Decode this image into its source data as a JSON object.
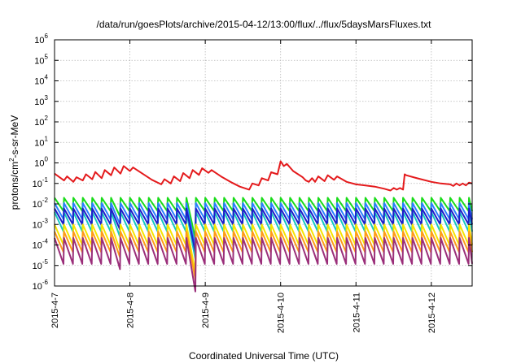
{
  "chart_data": {
    "type": "line",
    "title": "/data/run/goesPlots/archive/2015-04-12/13:00/flux/../flux/5daysMarsFluxes.txt",
    "xlabel": "Coordinated Universal Time (UTC)",
    "ylabel_parts": [
      "protons/cm",
      "2",
      "-s-sr-MeV"
    ],
    "yscale": "log",
    "ylim": [
      1e-06,
      1000000.0
    ],
    "y_ticks": [
      {
        "base": "10",
        "exp": "-6"
      },
      {
        "base": "10",
        "exp": "-5"
      },
      {
        "base": "10",
        "exp": "-4"
      },
      {
        "base": "10",
        "exp": "-3"
      },
      {
        "base": "10",
        "exp": "-2"
      },
      {
        "base": "10",
        "exp": "-1"
      },
      {
        "base": "10",
        "exp": "0"
      },
      {
        "base": "10",
        "exp": "1"
      },
      {
        "base": "10",
        "exp": "2"
      },
      {
        "base": "10",
        "exp": "3"
      },
      {
        "base": "10",
        "exp": "4"
      },
      {
        "base": "10",
        "exp": "5"
      },
      {
        "base": "10",
        "exp": "6"
      }
    ],
    "xlim": [
      "2015-04-07 00:00",
      "2015-04-12 13:00"
    ],
    "x_ticks": [
      "2015-4-7",
      "2015-4-8",
      "2015-4-9",
      "2015-4-10",
      "2015-4-11",
      "2015-4-12"
    ],
    "grid": true,
    "legend": "none",
    "series": [
      {
        "color": "#e41a1c",
        "points": [
          [
            "2015-04-07 00:00",
            0.3
          ],
          [
            "2015-04-07 03:00",
            0.14
          ],
          [
            "2015-04-07 04:00",
            0.22
          ],
          [
            "2015-04-07 06:00",
            0.12
          ],
          [
            "2015-04-07 07:00",
            0.2
          ],
          [
            "2015-04-07 09:00",
            0.14
          ],
          [
            "2015-04-07 10:00",
            0.28
          ],
          [
            "2015-04-07 12:00",
            0.16
          ],
          [
            "2015-04-07 13:00",
            0.36
          ],
          [
            "2015-04-07 15:00",
            0.18
          ],
          [
            "2015-04-07 16:00",
            0.45
          ],
          [
            "2015-04-07 18:00",
            0.25
          ],
          [
            "2015-04-07 19:00",
            0.6
          ],
          [
            "2015-04-07 21:00",
            0.3
          ],
          [
            "2015-04-07 22:00",
            0.7
          ],
          [
            "2015-04-08 00:00",
            0.4
          ],
          [
            "2015-04-08 01:00",
            0.6
          ],
          [
            "2015-04-08 04:00",
            0.3
          ],
          [
            "2015-04-08 07:00",
            0.15
          ],
          [
            "2015-04-08 10:00",
            0.09
          ],
          [
            "2015-04-08 11:00",
            0.16
          ],
          [
            "2015-04-08 13:00",
            0.1
          ],
          [
            "2015-04-08 14:00",
            0.22
          ],
          [
            "2015-04-08 16:00",
            0.13
          ],
          [
            "2015-04-08 17:00",
            0.32
          ],
          [
            "2015-04-08 19:00",
            0.18
          ],
          [
            "2015-04-08 20:00",
            0.45
          ],
          [
            "2015-04-08 22:00",
            0.26
          ],
          [
            "2015-04-08 23:00",
            0.55
          ],
          [
            "2015-04-09 01:00",
            0.33
          ],
          [
            "2015-04-09 02:00",
            0.45
          ],
          [
            "2015-04-09 05:00",
            0.22
          ],
          [
            "2015-04-09 08:00",
            0.12
          ],
          [
            "2015-04-09 11:00",
            0.07
          ],
          [
            "2015-04-09 14:00",
            0.05
          ],
          [
            "2015-04-09 15:00",
            0.1
          ],
          [
            "2015-04-09 17:00",
            0.08
          ],
          [
            "2015-04-09 18:00",
            0.18
          ],
          [
            "2015-04-09 20:00",
            0.14
          ],
          [
            "2015-04-09 21:00",
            0.35
          ],
          [
            "2015-04-09 23:00",
            0.28
          ],
          [
            "2015-04-10 00:00",
            1.2
          ],
          [
            "2015-04-10 01:00",
            0.7
          ],
          [
            "2015-04-10 02:00",
            0.9
          ],
          [
            "2015-04-10 04:00",
            0.4
          ],
          [
            "2015-04-10 07:00",
            0.2
          ],
          [
            "2015-04-10 08:00",
            0.14
          ],
          [
            "2015-04-10 09:00",
            0.12
          ],
          [
            "2015-04-10 10:00",
            0.18
          ],
          [
            "2015-04-10 11:00",
            0.12
          ],
          [
            "2015-04-10 12:00",
            0.22
          ],
          [
            "2015-04-10 14:00",
            0.13
          ],
          [
            "2015-04-10 15:00",
            0.25
          ],
          [
            "2015-04-10 17:00",
            0.15
          ],
          [
            "2015-04-10 18:00",
            0.22
          ],
          [
            "2015-04-10 21:00",
            0.12
          ],
          [
            "2015-04-11 00:00",
            0.09
          ],
          [
            "2015-04-11 03:00",
            0.08
          ],
          [
            "2015-04-11 06:00",
            0.07
          ],
          [
            "2015-04-11 09:00",
            0.055
          ],
          [
            "2015-04-11 11:00",
            0.045
          ],
          [
            "2015-04-11 12:00",
            0.06
          ],
          [
            "2015-04-11 13:00",
            0.05
          ],
          [
            "2015-04-11 14:00",
            0.06
          ],
          [
            "2015-04-11 15:00",
            0.05
          ],
          [
            "2015-04-11 15:30",
            0.28
          ],
          [
            "2015-04-11 16:00",
            0.25
          ],
          [
            "2015-04-11 20:00",
            0.17
          ],
          [
            "2015-04-12 00:00",
            0.12
          ],
          [
            "2015-04-12 03:00",
            0.1
          ],
          [
            "2015-04-12 06:00",
            0.09
          ],
          [
            "2015-04-12 07:00",
            0.075
          ],
          [
            "2015-04-12 08:00",
            0.1
          ],
          [
            "2015-04-12 09:00",
            0.08
          ],
          [
            "2015-04-12 10:00",
            0.1
          ],
          [
            "2015-04-12 11:00",
            0.08
          ],
          [
            "2015-04-12 12:00",
            0.11
          ],
          [
            "2015-04-12 13:00",
            0.1
          ]
        ]
      },
      {
        "color": "#1adb1a",
        "sawtooth": {
          "start": "2015-04-07 00:00",
          "period_hours": 3,
          "peak": 0.02,
          "trough": 0.0045
        }
      },
      {
        "color": "#2a7fff",
        "sawtooth": {
          "start": "2015-04-07 00:00",
          "period_hours": 3,
          "peak": 0.011,
          "trough": 0.0018
        }
      },
      {
        "color": "#14c7c0",
        "sawtooth": {
          "start": "2015-04-07 00:00",
          "period_hours": 3,
          "peak": 0.004,
          "trough": 0.00045
        }
      },
      {
        "color": "#1e1ec8",
        "sawtooth": {
          "start": "2015-04-07 00:00",
          "period_hours": 3,
          "peak": 0.006,
          "trough": 0.001
        }
      },
      {
        "color": "#f5e400",
        "sawtooth": {
          "start": "2015-04-07 00:00",
          "period_hours": 3,
          "peak": 0.001,
          "trough": 0.0001
        }
      },
      {
        "color": "#ff9a1a",
        "sawtooth": {
          "start": "2015-04-07 00:00",
          "period_hours": 3,
          "peak": 0.00045,
          "trough": 4.5e-05
        }
      },
      {
        "color": "#9b2f7a",
        "sawtooth": {
          "start": "2015-04-07 00:00",
          "period_hours": 3,
          "peak": 0.00022,
          "trough": 1.2e-05
        }
      }
    ],
    "dips": [
      {
        "time": "2015-04-07 22:00",
        "factor": 0.55
      },
      {
        "time": "2015-04-08 20:00",
        "factor": 0.25
      },
      {
        "time": "2015-04-08 21:00",
        "factor": 0.18
      }
    ]
  }
}
